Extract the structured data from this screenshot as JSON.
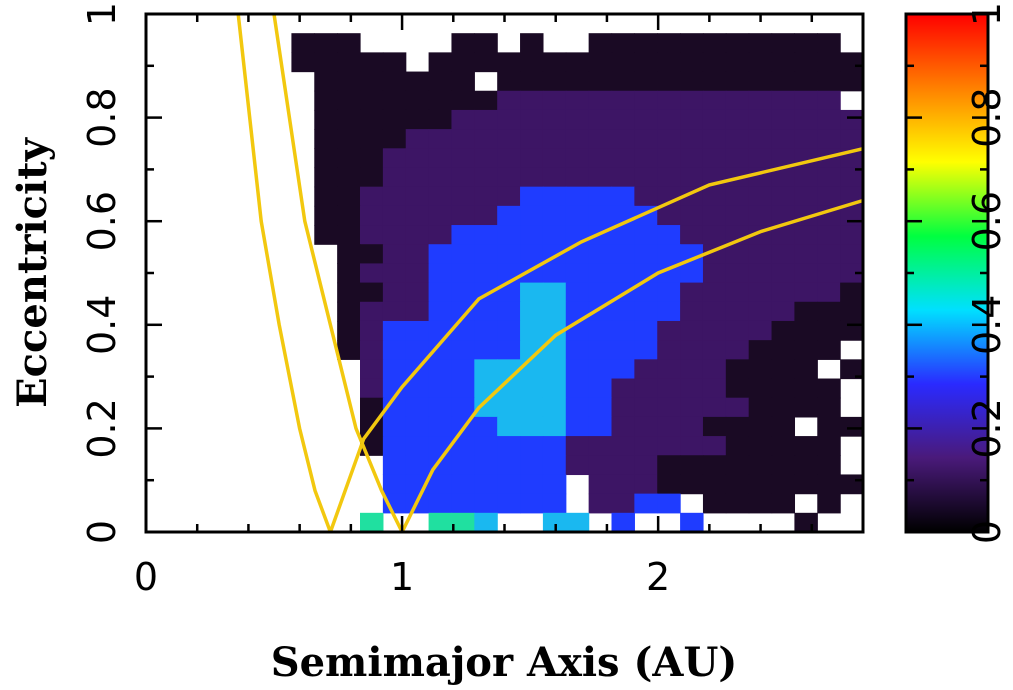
{
  "chart_data": {
    "type": "heatmap",
    "title": "",
    "xlabel": "Semimajor Axis (AU)",
    "ylabel": "Eccentricity",
    "xlim": [
      0,
      2.8
    ],
    "ylim": [
      0,
      1
    ],
    "x_ticks": [
      0,
      1,
      2
    ],
    "x_tick_labels": [
      "0",
      "1",
      "2"
    ],
    "y_ticks": [
      0,
      0.2,
      0.4,
      0.6,
      0.8,
      1
    ],
    "y_tick_labels": [
      "0",
      "0.2",
      "0.4",
      "0.6",
      "0.8",
      "1"
    ],
    "colorbar": {
      "range": [
        0,
        1
      ],
      "ticks": [
        0,
        0.2,
        0.4,
        0.6,
        0.8,
        1
      ],
      "tick_labels": [
        "0",
        "0.2",
        "0.4",
        "0.6",
        "0.8",
        "1"
      ],
      "colormap": [
        "#000000",
        "#4a1a7a",
        "#2a2aff",
        "#00e0ff",
        "#00ff40",
        "#ffff00",
        "#ff8000",
        "#ff0000"
      ]
    },
    "grid": {
      "x_start": 0.3,
      "x_end": 2.8,
      "y_start": 0,
      "y_end": 1,
      "rows_from_top": [
        "............................",
        "...ooo....oo.o..ooooooooooo.",
        "...ooooo.ooooooooooooooooooo",
        "....ooooooo.oooooooooooooooo",
        "....ooooooooppppppppppppppp.",
        "....oooooopppppppppppppppppp",
        "....ooooppppppppppppppppppppp",
        "....ooopppppppppppppppppppppp",
        "....oooppppppppppppppppppppp",
        "....oopppppppbbbbbpppppppppp",
        "....ooppppppbbbbbbbpppppppppp",
        "....ooppppbbbbbbbbbbppppppppp",
        ".....ooppbbbbbbbbbbbbpppppppp",
        ".....opppbbbbbbbbbbbbpppppppp",
        ".....ooppbbbbccbbbbbpppppppoo",
        ".....opppbbbbccbbbbbpppppoooo",
        ".....opbbbbbbccbbbbpppppoooo.",
        ".....opbbbbbbccbbbbppppoooo.o",
        "......pbbbbccccbbbppppoooo.o.",
        "......pbbbbccccbbpppppooooo..",
        "......obbbbccccbbppppppoooo.o",
        "......obbbbbcccbbppppoooo.oo.",
        "......obbbbbbbbpppppppooooo.o",
        ".......bbbbbbbbppppoooooooo..",
        ".......bbbbbbbb.pppooooooooo.",
        ".......bbbbbbbb.ppbb.oooo.o..",
        "......g..ggc..cc.b..b....o..."
      ]
    },
    "curves": [
      {
        "x": [
          0.36,
          0.45,
          0.52,
          0.6,
          0.66,
          0.72
        ],
        "y": [
          1.0,
          0.6,
          0.4,
          0.2,
          0.08,
          0.0
        ]
      },
      {
        "x": [
          0.5,
          0.62,
          0.72,
          0.82,
          0.92,
          1.0
        ],
        "y": [
          1.0,
          0.6,
          0.4,
          0.2,
          0.08,
          0.0
        ]
      },
      {
        "x": [
          0.72,
          0.85,
          1.0,
          1.3,
          1.7,
          2.2,
          2.8
        ],
        "y": [
          0.0,
          0.18,
          0.28,
          0.45,
          0.56,
          0.67,
          0.74
        ]
      },
      {
        "x": [
          1.0,
          1.12,
          1.3,
          1.6,
          2.0,
          2.4,
          2.8
        ],
        "y": [
          0.0,
          0.12,
          0.24,
          0.38,
          0.5,
          0.58,
          0.64
        ]
      }
    ]
  }
}
